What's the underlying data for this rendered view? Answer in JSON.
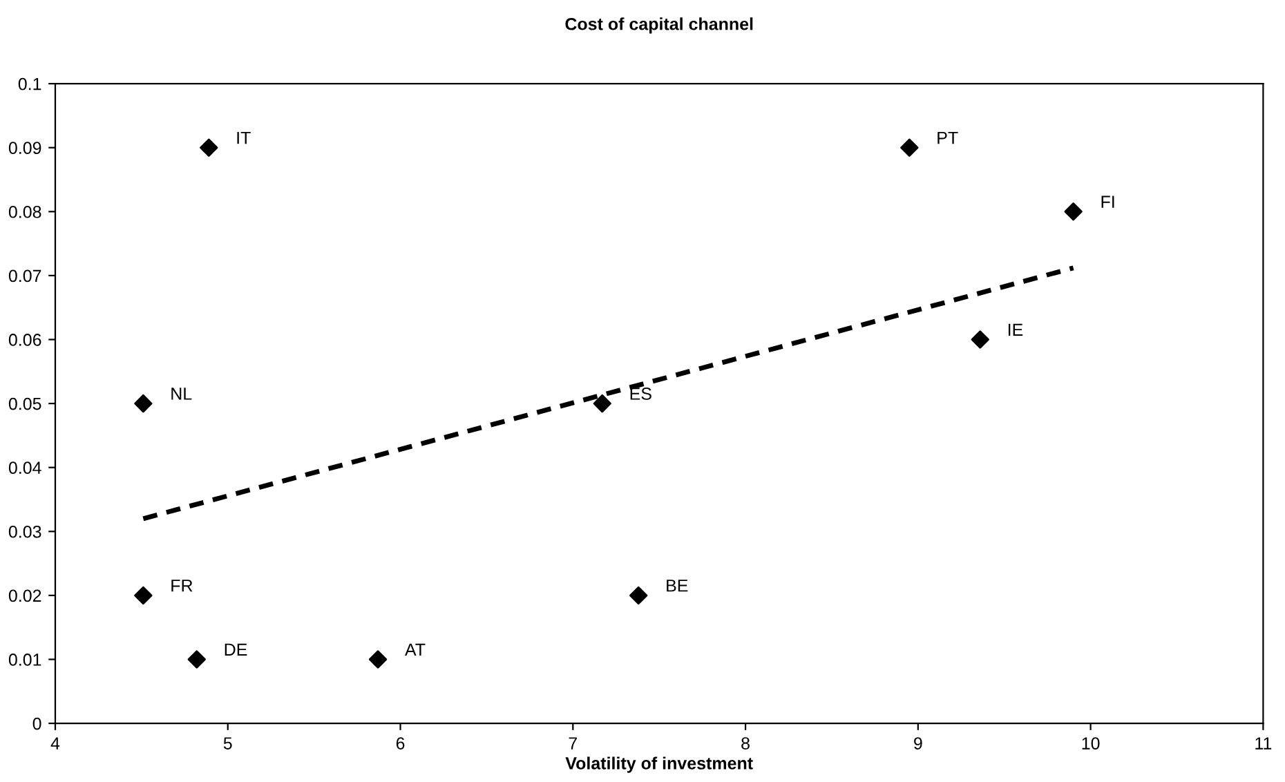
{
  "chart_data": {
    "type": "scatter",
    "title": "Cost of capital channel",
    "xlabel": "Volatility of investment",
    "xlim": [
      4,
      11
    ],
    "xticks": [
      4,
      5,
      6,
      7,
      8,
      9,
      10,
      11
    ],
    "ylim": [
      0,
      0.1
    ],
    "yticks": [
      0,
      0.01,
      0.02,
      0.03,
      0.04,
      0.05,
      0.06,
      0.07,
      0.08,
      0.09,
      0.1
    ],
    "grid": false,
    "legend": false,
    "series": [
      {
        "color": "#000000",
        "marker": "diamond",
        "x": [
          4.89,
          8.95,
          9.9,
          9.36,
          7.17,
          7.38,
          4.51,
          4.51,
          4.82,
          5.87
        ],
        "values": [
          0.09,
          0.09,
          0.08,
          0.06,
          0.05,
          0.02,
          0.05,
          0.02,
          0.01,
          0.01
        ]
      },
      {
        "type": "line",
        "color": "#000000",
        "line_style": "dashed",
        "marker": "none",
        "x": [
          4.51,
          9.9
        ],
        "values": [
          0.032,
          0.0712
        ]
      }
    ],
    "annotations": [
      {
        "text": "IT",
        "x": 4.89,
        "y": 0.09
      },
      {
        "text": "PT",
        "x": 8.95,
        "y": 0.09
      },
      {
        "text": "FI",
        "x": 9.9,
        "y": 0.08
      },
      {
        "text": "IE",
        "x": 9.36,
        "y": 0.06
      },
      {
        "text": "ES",
        "x": 7.17,
        "y": 0.05
      },
      {
        "text": "BE",
        "x": 7.38,
        "y": 0.02
      },
      {
        "text": "NL",
        "x": 4.51,
        "y": 0.05
      },
      {
        "text": "FR",
        "x": 4.51,
        "y": 0.02
      },
      {
        "text": "DE",
        "x": 4.82,
        "y": 0.01
      },
      {
        "text": "AT",
        "x": 5.87,
        "y": 0.01
      }
    ]
  }
}
